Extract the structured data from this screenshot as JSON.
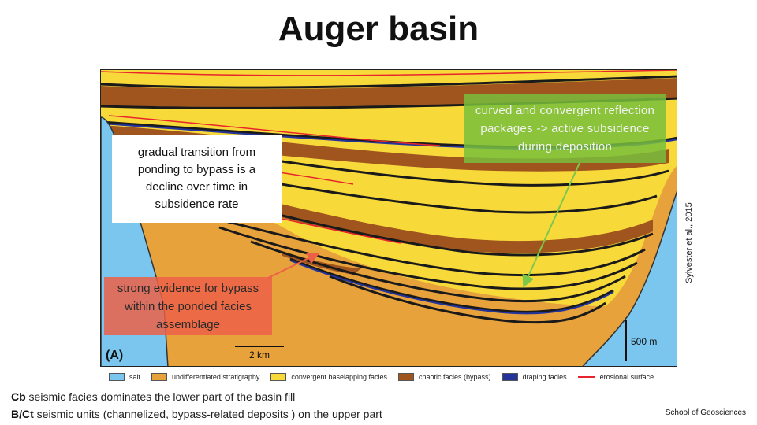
{
  "slide": {
    "title": "Auger basin",
    "panel_label": "(A)",
    "scale_horizontal": "2 km",
    "scale_vertical": "500 m",
    "citation": "Sylvester et al., 2015",
    "footer": "School of Geosciences"
  },
  "callouts": {
    "white": [
      "gradual transition from",
      "ponding to bypass is a",
      "decline over time in",
      "subsidence rate"
    ],
    "green": [
      "curved and convergent reflection",
      "packages -> active subsidence",
      "during deposition"
    ],
    "red": [
      "strong evidence for bypass",
      "within the ponded facies",
      "assemblage"
    ]
  },
  "legend": [
    {
      "label": "salt",
      "color": "#7ac6ee"
    },
    {
      "label": "undifferentiated stratigraphy",
      "color": "#e8a23c"
    },
    {
      "label": "convergent baselapping facies",
      "color": "#f7d93a"
    },
    {
      "label": "chaotic facies (bypass)",
      "color": "#a0541e"
    },
    {
      "label": "draping facies",
      "color": "#24349a"
    },
    {
      "label": "erosional surface",
      "color": "#e8242c"
    }
  ],
  "notes": [
    {
      "bold": "Cb",
      "text": " seismic facies dominates the lower part of the basin fill"
    },
    {
      "bold": "B/Ct",
      "text": " seismic units (channelized, bypass-related deposits ) on the upper part"
    }
  ]
}
